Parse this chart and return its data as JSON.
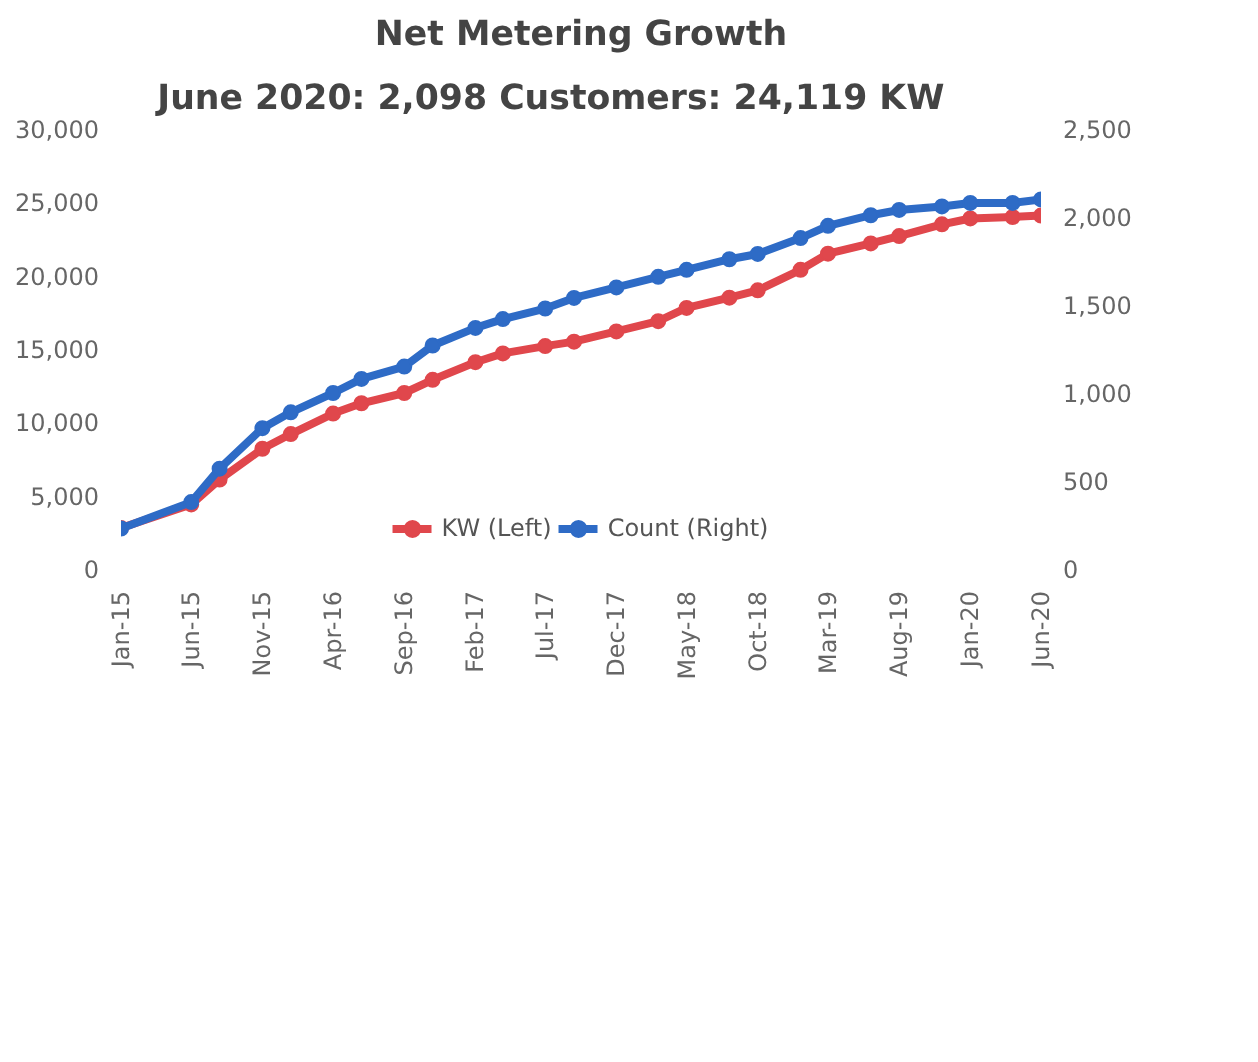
{
  "chart_data": {
    "type": "line",
    "title": "Net Metering Growth",
    "subtitle": "June 2020:  2,098     Customers: 24,119 KW",
    "x": [
      "2015-01",
      "2015-06",
      "2015-08",
      "2015-11",
      "2016-01",
      "2016-04",
      "2016-06",
      "2016-09",
      "2016-11",
      "2017-02",
      "2017-04",
      "2017-07",
      "2017-09",
      "2017-12",
      "2018-03",
      "2018-05",
      "2018-08",
      "2018-10",
      "2019-01",
      "2019-03",
      "2019-06",
      "2019-08",
      "2019-11",
      "2020-01",
      "2020-04",
      "2020-06"
    ],
    "series": [
      {
        "name": "KW (Left)",
        "color": "#e0474c",
        "values": [
          2800,
          4400,
          6100,
          8200,
          9200,
          10600,
          11300,
          12000,
          12900,
          14100,
          14700,
          15200,
          15500,
          16200,
          16900,
          17800,
          18500,
          19000,
          20400,
          21500,
          22200,
          22700,
          23500,
          23900,
          24000,
          24100
        ]
      },
      {
        "name": "Count (Right)",
        "color": "#2e6bc6",
        "axis": "y2",
        "values": [
          230,
          380,
          570,
          800,
          890,
          1000,
          1080,
          1150,
          1270,
          1370,
          1420,
          1480,
          1540,
          1600,
          1660,
          1700,
          1760,
          1790,
          1880,
          1950,
          2010,
          2040,
          2060,
          2080,
          2080,
          2100
        ]
      }
    ],
    "xlim": [
      "2015-01",
      "2020-06"
    ],
    "xticks": [
      {
        "value": "2015-01",
        "label": "Jan-15"
      },
      {
        "value": "2015-06",
        "label": "Jun-15"
      },
      {
        "value": "2015-11",
        "label": "Nov-15"
      },
      {
        "value": "2016-04",
        "label": "Apr-16"
      },
      {
        "value": "2016-09",
        "label": "Sep-16"
      },
      {
        "value": "2017-02",
        "label": "Feb-17"
      },
      {
        "value": "2017-07",
        "label": "Jul-17"
      },
      {
        "value": "2017-12",
        "label": "Dec-17"
      },
      {
        "value": "2018-05",
        "label": "May-18"
      },
      {
        "value": "2018-10",
        "label": "Oct-18"
      },
      {
        "value": "2019-03",
        "label": "Mar-19"
      },
      {
        "value": "2019-08",
        "label": "Aug-19"
      },
      {
        "value": "2020-01",
        "label": "Jan-20"
      },
      {
        "value": "2020-06",
        "label": "Jun-20"
      }
    ],
    "ylim": [
      0,
      30000
    ],
    "yticks": [
      {
        "value": 0,
        "label": "0"
      },
      {
        "value": 5000,
        "label": "5,000"
      },
      {
        "value": 10000,
        "label": "10,000"
      },
      {
        "value": 15000,
        "label": "15,000"
      },
      {
        "value": 20000,
        "label": "20,000"
      },
      {
        "value": 25000,
        "label": "25,000"
      },
      {
        "value": 30000,
        "label": "30,000"
      }
    ],
    "y2lim": [
      0,
      2500
    ],
    "y2ticks": [
      {
        "value": 0,
        "label": "0"
      },
      {
        "value": 500,
        "label": "500"
      },
      {
        "value": 1000,
        "label": "1,000"
      },
      {
        "value": 1500,
        "label": "1,500"
      },
      {
        "value": 2000,
        "label": "2,000"
      },
      {
        "value": 2500,
        "label": "2,500"
      }
    ],
    "grid": false,
    "legend": "bottom",
    "marker": "circle",
    "line_style": "solid"
  }
}
